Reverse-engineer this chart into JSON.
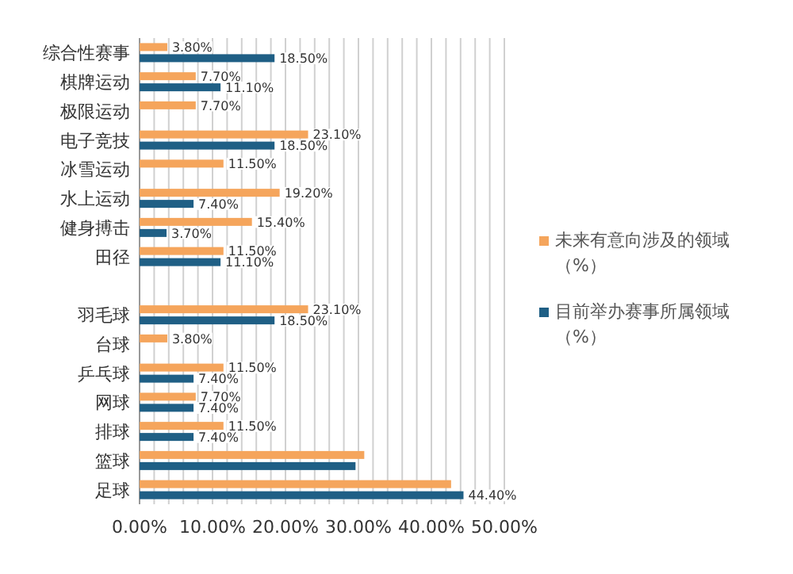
{
  "chart_data": {
    "type": "bar",
    "orientation": "horizontal",
    "categories": [
      "综合性赛事",
      "棋牌运动",
      "极限运动",
      "电子竞技",
      "冰雪运动",
      "水上运动",
      "健身搏击",
      "田径",
      null,
      "羽毛球",
      "台球",
      "乒乓球",
      "网球",
      "排球",
      "篮球",
      "足球"
    ],
    "series": [
      {
        "name": "未来有意向涉及的领域（%）",
        "color": "#f5a55c",
        "values": [
          3.8,
          7.7,
          7.7,
          23.1,
          11.5,
          19.2,
          15.4,
          11.5,
          null,
          23.1,
          3.8,
          11.5,
          7.7,
          11.5,
          30.8,
          42.7
        ],
        "value_labels": [
          "3.80%",
          "7.70%",
          "7.70%",
          "23.10%",
          "11.50%",
          "19.20%",
          "15.40%",
          "11.50%",
          null,
          "23.10%",
          "3.80%",
          "11.50%",
          "7.70%",
          "11.50%",
          null,
          null
        ]
      },
      {
        "name": "目前举办赛事所属领域（%）",
        "color": "#1f5f85",
        "values": [
          18.5,
          11.1,
          null,
          18.5,
          null,
          7.4,
          3.7,
          11.1,
          null,
          18.5,
          null,
          7.4,
          7.4,
          7.4,
          29.6,
          44.4
        ],
        "value_labels": [
          "18.50%",
          "11.10%",
          null,
          "18.50%",
          null,
          "7.40%",
          "3.70%",
          "11.10%",
          null,
          "18.50%",
          null,
          "7.40%",
          "7.40%",
          "7.40%",
          null,
          "44.40%"
        ]
      }
    ],
    "xlim": [
      0,
      50
    ],
    "xticks": [
      {
        "value": 0,
        "label": "0.00%"
      },
      {
        "value": 2,
        "label": null
      },
      {
        "value": 4,
        "label": null
      },
      {
        "value": 6,
        "label": null
      },
      {
        "value": 8,
        "label": null
      },
      {
        "value": 10,
        "label": "10.00%"
      },
      {
        "value": 12,
        "label": null
      },
      {
        "value": 14,
        "label": null
      },
      {
        "value": 16,
        "label": null
      },
      {
        "value": 18,
        "label": null
      },
      {
        "value": 20,
        "label": "20.00%"
      },
      {
        "value": 22,
        "label": null
      },
      {
        "value": 24,
        "label": null
      },
      {
        "value": 26,
        "label": null
      },
      {
        "value": 28,
        "label": null
      },
      {
        "value": 30,
        "label": "30.00%"
      },
      {
        "value": 32,
        "label": null
      },
      {
        "value": 34,
        "label": null
      },
      {
        "value": 36,
        "label": null
      },
      {
        "value": 38,
        "label": null
      },
      {
        "value": 40,
        "label": "40.00%"
      },
      {
        "value": 42,
        "label": null
      },
      {
        "value": 44,
        "label": null
      },
      {
        "value": 46,
        "label": null
      },
      {
        "value": 48,
        "label": null
      },
      {
        "value": 50,
        "label": "50.00%"
      }
    ],
    "grid": "x",
    "legend": "right"
  }
}
